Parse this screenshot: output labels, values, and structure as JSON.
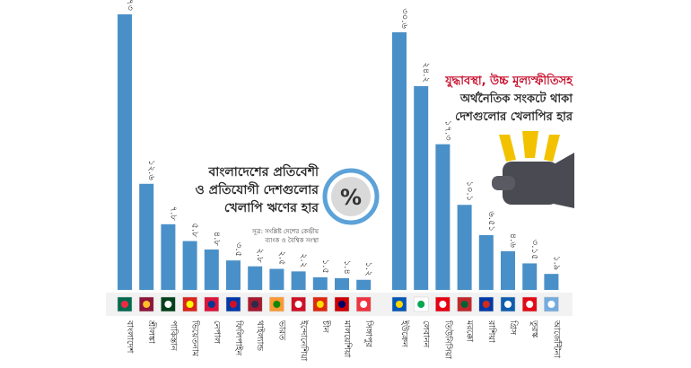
{
  "left_chart": {
    "title_lines": [
      "বাংলাদেশের প্রতিবেশী",
      "ও প্রতিযোগী দেশগুলোর",
      "খেলাপি ঋণের হার"
    ],
    "source_lines": [
      "সূত্র: সংশ্লিষ্ট দেশের কেন্দ্রীয়",
      "ব্যাংক ও বৈশ্বিক সংস্থা"
    ],
    "percent_symbol": "%"
  },
  "right_chart": {
    "title_lines": [
      "যুদ্ধাবস্থা, উচ্চ মূল্যস্ফীতিসহ",
      "অর্থনৈতিক সংকটে থাকা",
      "দেশগুলোর খেলাপির হার"
    ]
  },
  "chart_data": [
    {
      "type": "bar",
      "title": "বাংলাদেশের প্রতিবেশী ও প্রতিযোগী দেশগুলোর খেলাপি ঋণের হার",
      "ylabel": "%",
      "ylim": [
        0,
        34
      ],
      "categories": [
        "বাংলাদেশ",
        "শ্রীলঙ্কা",
        "পাকিস্তান",
        "ভিয়েতনাম",
        "নেপাল",
        "ফিলিপাইন",
        "থাইল্যান্ড",
        "ভারত",
        "ইন্দোনেশিয়া",
        "চীন",
        "মালয়েশিয়া",
        "সিঙ্গাপুর"
      ],
      "values": [
        32.73,
        12.6,
        7.8,
        5.8,
        4.8,
        3.5,
        2.8,
        2.5,
        2.2,
        1.5,
        1.4,
        1.2
      ],
      "value_labels": [
        "৩২.৭৩",
        "১২.৬",
        "৭.৮",
        "৫.৮",
        "৪.৮",
        "৩.৫",
        "২.৮",
        "২.৫",
        "২.২",
        "১.৫",
        "১.৪",
        "১.২"
      ],
      "flag_colors": [
        [
          "#006a4e",
          "#f42a41"
        ],
        [
          "#8d153a",
          "#ffbe29"
        ],
        [
          "#01411c",
          "#ffffff"
        ],
        [
          "#da251d",
          "#ffff00"
        ],
        [
          "#dc143c",
          "#003893"
        ],
        [
          "#0038a8",
          "#ce1126"
        ],
        [
          "#a51931",
          "#2d2a4a"
        ],
        [
          "#ff9933",
          "#138808"
        ],
        [
          "#ce1126",
          "#ffffff"
        ],
        [
          "#de2910",
          "#ffde00"
        ],
        [
          "#cc0001",
          "#010066"
        ],
        [
          "#ef3340",
          "#ffffff"
        ]
      ]
    },
    {
      "type": "bar",
      "title": "যুদ্ধাবস্থা, উচ্চ মূল্যস্ফীতিসহ অর্থনৈতিক সংকটে থাকা দেশগুলোর খেলাপির হার",
      "ylabel": "%",
      "ylim": [
        0,
        34
      ],
      "categories": [
        "ইউক্রেন",
        "লেবানন",
        "তিউনিসিয়া",
        "মরক্কো",
        "রাশিয়া",
        "গ্রিস",
        "তুরস্ক",
        "আর্জেন্টিনা"
      ],
      "values": [
        30.6,
        24.2,
        17.3,
        10.1,
        6.51,
        4.6,
        3.15,
        1.9
      ],
      "value_labels": [
        "৩০.৬",
        "২৪.২",
        "১৭.৩",
        "১০.১",
        "৬.৫১",
        "৪.৬",
        "৩.১৫",
        "১.৯"
      ],
      "flag_colors": [
        [
          "#0057b7",
          "#ffd700"
        ],
        [
          "#ffffff",
          "#00a651"
        ],
        [
          "#e70013",
          "#ffffff"
        ],
        [
          "#c1272d",
          "#006233"
        ],
        [
          "#0039a6",
          "#d52b1e"
        ],
        [
          "#0d5eaf",
          "#ffffff"
        ],
        [
          "#e30a17",
          "#ffffff"
        ],
        [
          "#74acdf",
          "#ffffff"
        ]
      ]
    }
  ]
}
